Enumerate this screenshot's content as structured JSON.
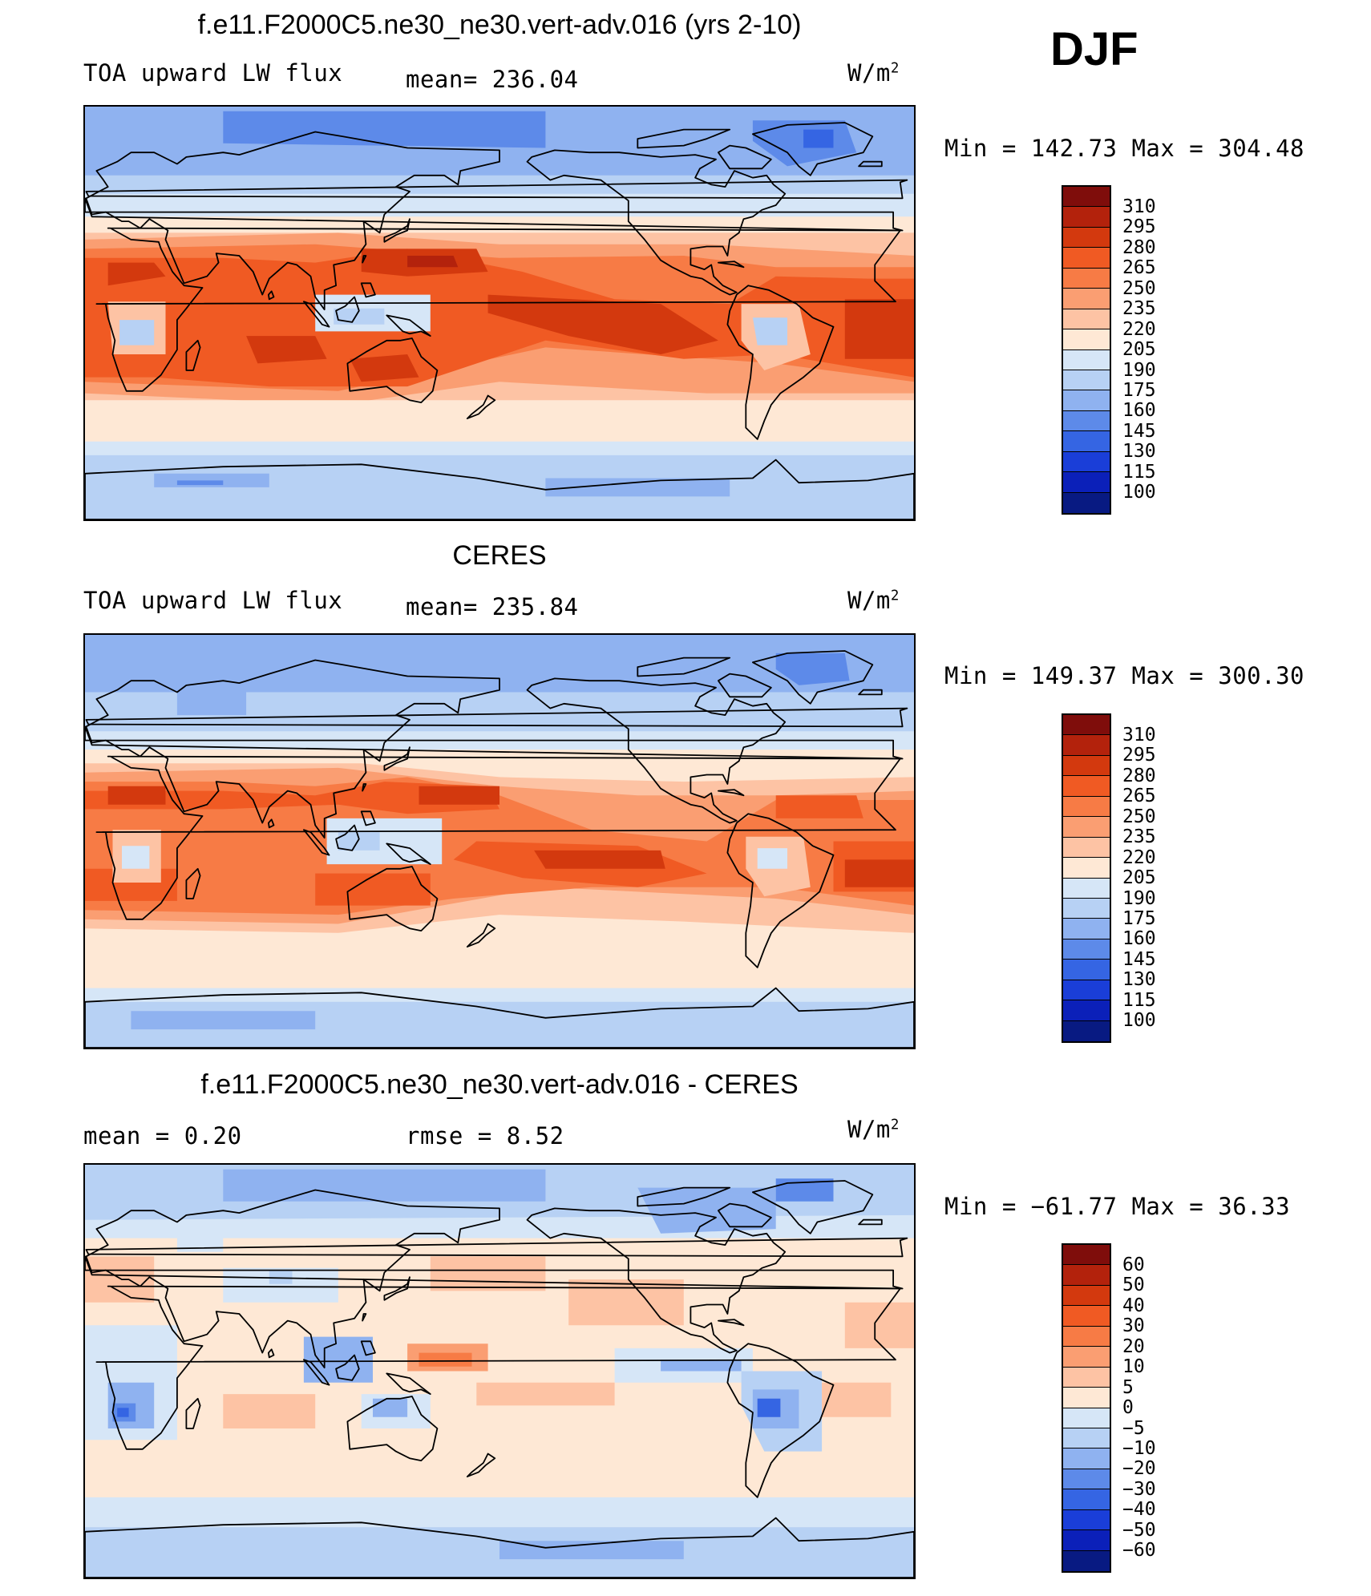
{
  "season": "DJF",
  "panels": [
    {
      "title": "f.e11.F2000C5.ne30_ne30.vert-adv.016 (yrs 2-10)",
      "left_label": "TOA upward LW flux",
      "center_label": "mean= 236.04",
      "units": "W/m",
      "units_exp": "2",
      "minmax": "Min = 142.73 Max = 304.48",
      "colorbar": {
        "labels": [
          "310",
          "295",
          "280",
          "265",
          "250",
          "235",
          "220",
          "205",
          "190",
          "175",
          "160",
          "145",
          "130",
          "115",
          "100"
        ],
        "colors": [
          "#7f0d0b",
          "#b3220c",
          "#d3390e",
          "#f05a23",
          "#f77b45",
          "#fa9e72",
          "#fdc3a4",
          "#fee8d5",
          "#d6e6f7",
          "#b7d1f4",
          "#8fb2f0",
          "#5d8ae9",
          "#3565e3",
          "#1a3ed8",
          "#0b20b9",
          "#081a82"
        ]
      },
      "field_type": "model"
    },
    {
      "title": "CERES",
      "left_label": "TOA upward LW flux",
      "center_label": "mean= 235.84",
      "units": "W/m",
      "units_exp": "2",
      "minmax": "Min = 149.37 Max = 300.30",
      "colorbar": {
        "labels": [
          "310",
          "295",
          "280",
          "265",
          "250",
          "235",
          "220",
          "205",
          "190",
          "175",
          "160",
          "145",
          "130",
          "115",
          "100"
        ],
        "colors": [
          "#7f0d0b",
          "#b3220c",
          "#d3390e",
          "#f05a23",
          "#f77b45",
          "#fa9e72",
          "#fdc3a4",
          "#fee8d5",
          "#d6e6f7",
          "#b7d1f4",
          "#8fb2f0",
          "#5d8ae9",
          "#3565e3",
          "#1a3ed8",
          "#0b20b9",
          "#081a82"
        ]
      },
      "field_type": "obs"
    },
    {
      "title": "f.e11.F2000C5.ne30_ne30.vert-adv.016 - CERES",
      "left_label": "mean =    0.20",
      "center_label": "rmse =    8.52",
      "units": "W/m",
      "units_exp": "2",
      "minmax": "Min = −61.77 Max =  36.33",
      "colorbar": {
        "labels": [
          "60",
          "50",
          "40",
          "30",
          "20",
          "10",
          "5",
          "0",
          "−5",
          "−10",
          "−20",
          "−30",
          "−40",
          "−50",
          "−60"
        ],
        "colors": [
          "#7f0d0b",
          "#b3220c",
          "#d3390e",
          "#f05a23",
          "#f77b45",
          "#fa9e72",
          "#fdc3a4",
          "#fee8d5",
          "#d6e6f7",
          "#b7d1f4",
          "#8fb2f0",
          "#5d8ae9",
          "#3565e3",
          "#1a3ed8",
          "#0b20b9",
          "#081a82"
        ]
      },
      "field_type": "diff"
    }
  ]
}
